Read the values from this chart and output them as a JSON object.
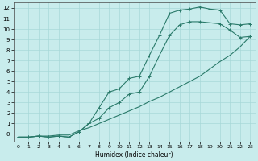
{
  "xlabel": "Humidex (Indice chaleur)",
  "bg_color": "#c8ecec",
  "grid_color": "#a8d8d8",
  "line_color": "#2a7a6a",
  "xlim": [
    -0.5,
    23.5
  ],
  "ylim": [
    -0.7,
    12.5
  ],
  "xticks": [
    0,
    1,
    2,
    3,
    4,
    5,
    6,
    7,
    8,
    9,
    10,
    11,
    12,
    13,
    14,
    15,
    16,
    17,
    18,
    19,
    20,
    21,
    22,
    23
  ],
  "yticks": [
    0,
    1,
    2,
    3,
    4,
    5,
    6,
    7,
    8,
    9,
    10,
    11,
    12
  ],
  "line1_x": [
    0,
    1,
    2,
    3,
    4,
    5,
    6,
    7,
    8,
    9,
    10,
    11,
    12,
    13,
    14,
    15,
    16,
    17,
    18,
    19,
    20,
    21,
    22,
    23
  ],
  "line1_y": [
    -0.3,
    -0.3,
    -0.2,
    -0.2,
    -0.1,
    -0.1,
    0.3,
    0.6,
    1.0,
    1.4,
    1.8,
    2.2,
    2.6,
    3.1,
    3.5,
    4.0,
    4.5,
    5.0,
    5.5,
    6.2,
    6.9,
    7.5,
    8.3,
    9.3
  ],
  "line2_x": [
    0,
    1,
    2,
    3,
    4,
    5,
    6,
    7,
    8,
    9,
    10,
    11,
    12,
    13,
    14,
    15,
    16,
    17,
    18,
    19,
    20,
    21,
    22,
    23
  ],
  "line2_y": [
    -0.3,
    -0.3,
    -0.2,
    -0.3,
    -0.2,
    -0.3,
    0.2,
    1.0,
    1.5,
    2.5,
    3.0,
    3.8,
    4.0,
    5.5,
    7.5,
    9.4,
    10.4,
    10.7,
    10.7,
    10.6,
    10.5,
    9.9,
    9.2,
    9.3
  ],
  "line3_x": [
    0,
    1,
    2,
    3,
    4,
    5,
    6,
    7,
    8,
    9,
    10,
    11,
    12,
    13,
    14,
    15,
    16,
    17,
    18,
    19,
    20,
    21,
    22,
    23
  ],
  "line3_y": [
    -0.3,
    -0.3,
    -0.2,
    -0.3,
    -0.2,
    -0.3,
    0.2,
    1.0,
    2.5,
    4.0,
    4.3,
    5.3,
    5.5,
    7.5,
    9.4,
    11.5,
    11.8,
    11.9,
    12.1,
    11.9,
    11.8,
    10.5,
    10.4,
    10.5
  ]
}
